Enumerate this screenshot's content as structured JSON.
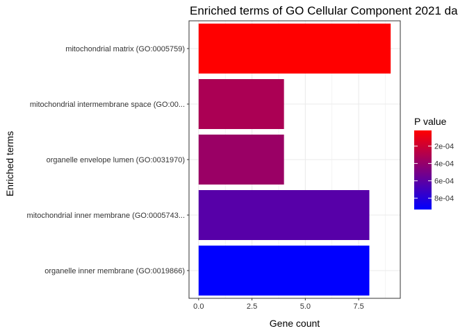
{
  "chart_data": {
    "type": "bar",
    "orientation": "horizontal",
    "title": "Enriched terms of GO Cellular Component 2021 da",
    "xlabel": "Gene count",
    "ylabel": "Enriched terms",
    "xlim": [
      -0.45,
      9.45
    ],
    "xticks": [
      0,
      2.5,
      5,
      7.5
    ],
    "xtick_labels": [
      "0.0",
      "2.5",
      "5.0",
      "7.5"
    ],
    "grid": true,
    "categories": [
      "mitochondrial matrix (GO:0005759)",
      "mitochondrial intermembrane space (GO:00...",
      "organelle envelope lumen (GO:0031970)",
      "mitochondrial inner membrane (GO:0005743...",
      "organelle inner membrane (GO:0019866)"
    ],
    "values": [
      9,
      4,
      4,
      8,
      8
    ],
    "p_values": [
      2e-05,
      0.00032,
      0.00038,
      0.00062,
      0.00093
    ],
    "legend": {
      "title": "P value",
      "position": "right",
      "ticks": [
        0.0002,
        0.0004,
        0.0006,
        0.0008
      ],
      "tick_labels": [
        "2e-04",
        "4e-04",
        "6e-04",
        "8e-04"
      ],
      "range": [
        2e-05,
        0.00093
      ],
      "color_low": "#ff0000",
      "color_high": "#0000ff"
    }
  }
}
